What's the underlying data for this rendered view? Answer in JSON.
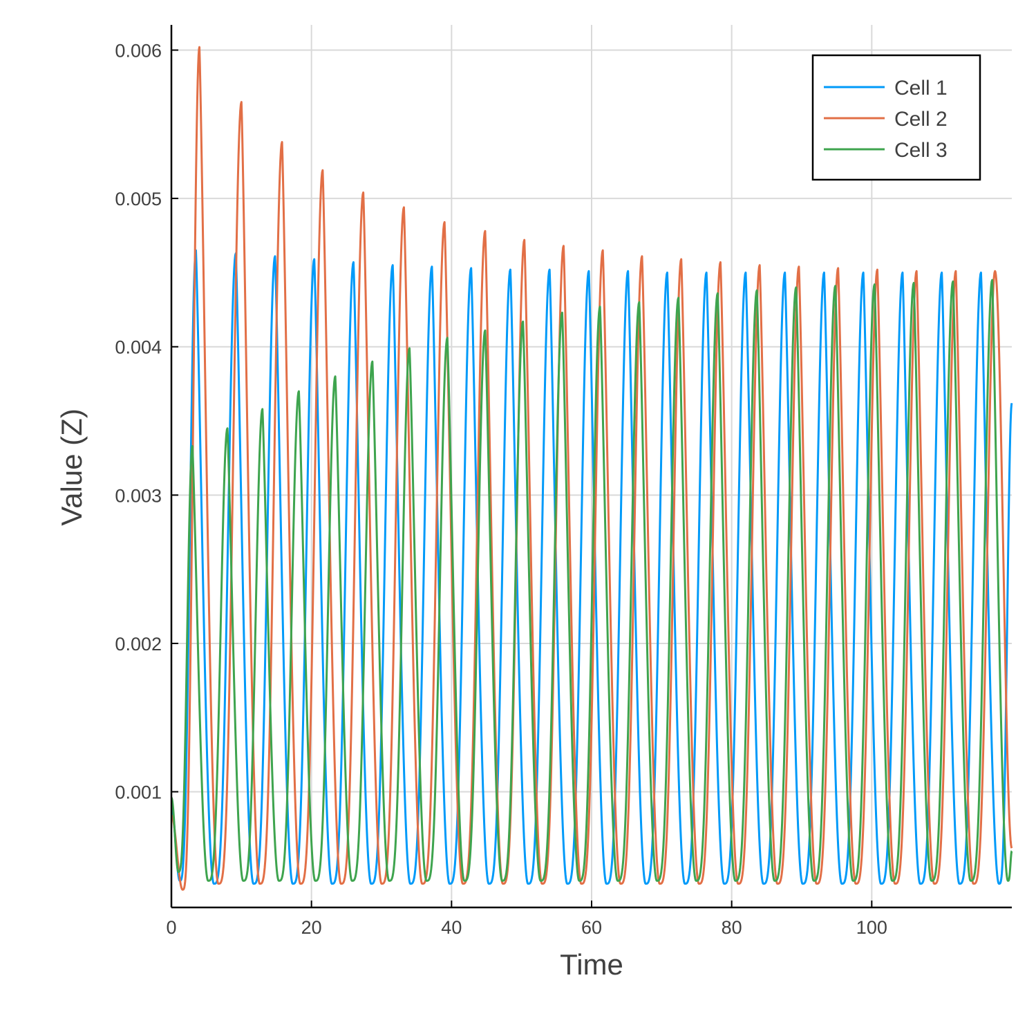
{
  "chart_data": {
    "type": "line",
    "title": "",
    "xlabel": "Time",
    "ylabel": "Value (Z)",
    "xlim": [
      0,
      120
    ],
    "ylim": [
      0.00022,
      0.00617
    ],
    "xticks": [
      0,
      20,
      40,
      60,
      80,
      100
    ],
    "xtick_labels": [
      "0",
      "20",
      "40",
      "60",
      "80",
      "100"
    ],
    "yticks": [
      0.001,
      0.002,
      0.003,
      0.004,
      0.005,
      0.006
    ],
    "ytick_labels": [
      "0.001",
      "0.002",
      "0.003",
      "0.004",
      "0.005",
      "0.006"
    ],
    "grid": true,
    "legend_position": "top-right",
    "series": [
      {
        "name": "Cell 1",
        "color": "#009AF9",
        "trough": 0.00038,
        "first_min_time": 1.2,
        "first_min_value": 0.0004,
        "peak_times": [
          3.5,
          9.2,
          14.8,
          20.4,
          26.0,
          31.6,
          37.2,
          42.8,
          48.4,
          54.0,
          59.6,
          65.2,
          70.8,
          76.4,
          82.0,
          87.6,
          93.2,
          98.8,
          104.4,
          110.0,
          115.6
        ],
        "peaks": [
          0.00465,
          0.00463,
          0.00461,
          0.00459,
          0.00457,
          0.00455,
          0.00454,
          0.00453,
          0.00452,
          0.00452,
          0.00451,
          0.00451,
          0.0045,
          0.0045,
          0.0045,
          0.0045,
          0.0045,
          0.0045,
          0.0045,
          0.0045,
          0.0045
        ],
        "end_value": 0.00362
      },
      {
        "name": "Cell 2",
        "color": "#E26F46",
        "trough": 0.00038,
        "first_min_time": 1.6,
        "first_min_value": 0.00034,
        "peak_times": [
          4.0,
          10.0,
          15.8,
          21.6,
          27.4,
          33.2,
          39.0,
          44.8,
          50.4,
          56.0,
          61.6,
          67.2,
          72.8,
          78.4,
          84.0,
          89.6,
          95.2,
          100.8,
          106.4,
          112.0,
          117.6
        ],
        "peaks": [
          0.00602,
          0.00565,
          0.00538,
          0.00519,
          0.00504,
          0.00494,
          0.00484,
          0.00478,
          0.00472,
          0.00468,
          0.00465,
          0.00461,
          0.00459,
          0.00457,
          0.00455,
          0.00454,
          0.00453,
          0.00452,
          0.00451,
          0.00451,
          0.00451
        ],
        "end_value": 0.00062
      },
      {
        "name": "Cell 3",
        "color": "#3EA44E",
        "trough": 0.0004,
        "first_min_time": 1.0,
        "first_min_value": 0.00046,
        "peak_times": [
          3.0,
          8.0,
          13.0,
          18.2,
          23.4,
          28.7,
          34.0,
          39.4,
          44.8,
          50.2,
          55.8,
          61.2,
          66.8,
          72.4,
          78.0,
          83.6,
          89.2,
          94.8,
          100.4,
          106.0,
          111.6,
          117.2
        ],
        "peaks": [
          0.00333,
          0.00345,
          0.00358,
          0.0037,
          0.0038,
          0.0039,
          0.00399,
          0.00406,
          0.00411,
          0.00417,
          0.00423,
          0.00427,
          0.0043,
          0.00433,
          0.00436,
          0.00438,
          0.0044,
          0.00441,
          0.00442,
          0.00443,
          0.00444,
          0.00445
        ],
        "end_value": 0.0006
      }
    ]
  }
}
